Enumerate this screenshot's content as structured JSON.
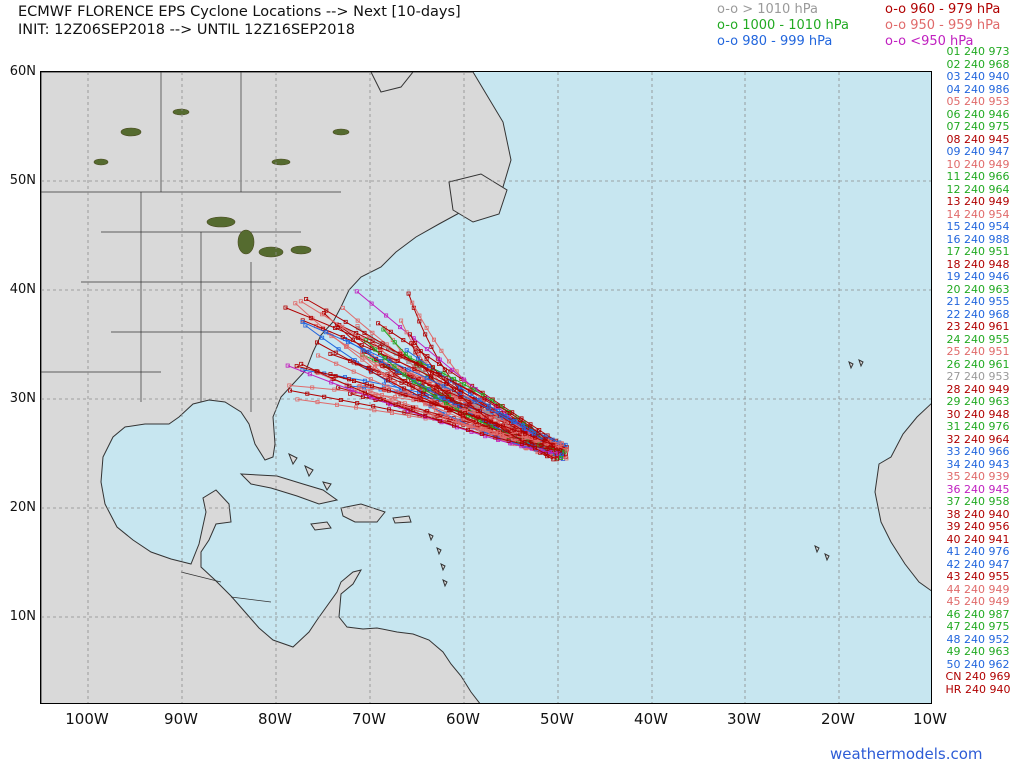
{
  "header": {
    "title_line1": "ECMWF FLORENCE EPS Cyclone Locations --> Next [10-days]",
    "title_line2": "INIT: 12Z06SEP2018 --> UNTIL 12Z16SEP2018"
  },
  "legend": [
    {
      "text": "o-o > 1010 hPa",
      "color": "#9a9a9a"
    },
    {
      "text": "o-o 960 - 979 hPa",
      "color": "#b00000"
    },
    {
      "text": "o-o 1000 - 1010 hPa",
      "color": "#22aa22"
    },
    {
      "text": "o-o 950 - 959 hPa",
      "color": "#e06a6a"
    },
    {
      "text": "o-o 980 - 999 hPa",
      "color": "#2266dd"
    },
    {
      "text": "o-o <950 hPa",
      "color": "#c020c0"
    }
  ],
  "axes": {
    "lat_labels": [
      "60N",
      "50N",
      "40N",
      "30N",
      "20N",
      "10N"
    ],
    "lon_labels": [
      "100W",
      "90W",
      "80W",
      "70W",
      "60W",
      "50W",
      "40W",
      "30W",
      "20W",
      "10W"
    ],
    "lat_range": [
      2,
      60
    ],
    "lon_range": [
      -105,
      -10
    ]
  },
  "members": [
    {
      "id": "01",
      "hours": "240",
      "pressure": "973",
      "color": "#22aa22"
    },
    {
      "id": "02",
      "hours": "240",
      "pressure": "968",
      "color": "#22aa22"
    },
    {
      "id": "03",
      "hours": "240",
      "pressure": "940",
      "color": "#2266dd"
    },
    {
      "id": "04",
      "hours": "240",
      "pressure": "986",
      "color": "#2266dd"
    },
    {
      "id": "05",
      "hours": "240",
      "pressure": "953",
      "color": "#e06a6a"
    },
    {
      "id": "06",
      "hours": "240",
      "pressure": "946",
      "color": "#22aa22"
    },
    {
      "id": "07",
      "hours": "240",
      "pressure": "975",
      "color": "#22aa22"
    },
    {
      "id": "08",
      "hours": "240",
      "pressure": "945",
      "color": "#b00000"
    },
    {
      "id": "09",
      "hours": "240",
      "pressure": "947",
      "color": "#2266dd"
    },
    {
      "id": "10",
      "hours": "240",
      "pressure": "949",
      "color": "#e06a6a"
    },
    {
      "id": "11",
      "hours": "240",
      "pressure": "966",
      "color": "#22aa22"
    },
    {
      "id": "12",
      "hours": "240",
      "pressure": "964",
      "color": "#22aa22"
    },
    {
      "id": "13",
      "hours": "240",
      "pressure": "949",
      "color": "#b00000"
    },
    {
      "id": "14",
      "hours": "240",
      "pressure": "954",
      "color": "#e06a6a"
    },
    {
      "id": "15",
      "hours": "240",
      "pressure": "954",
      "color": "#2266dd"
    },
    {
      "id": "16",
      "hours": "240",
      "pressure": "988",
      "color": "#2266dd"
    },
    {
      "id": "17",
      "hours": "240",
      "pressure": "951",
      "color": "#22aa22"
    },
    {
      "id": "18",
      "hours": "240",
      "pressure": "948",
      "color": "#b00000"
    },
    {
      "id": "19",
      "hours": "240",
      "pressure": "946",
      "color": "#2266dd"
    },
    {
      "id": "20",
      "hours": "240",
      "pressure": "963",
      "color": "#22aa22"
    },
    {
      "id": "21",
      "hours": "240",
      "pressure": "955",
      "color": "#2266dd"
    },
    {
      "id": "22",
      "hours": "240",
      "pressure": "968",
      "color": "#2266dd"
    },
    {
      "id": "23",
      "hours": "240",
      "pressure": "961",
      "color": "#b00000"
    },
    {
      "id": "24",
      "hours": "240",
      "pressure": "955",
      "color": "#22aa22"
    },
    {
      "id": "25",
      "hours": "240",
      "pressure": "951",
      "color": "#e06a6a"
    },
    {
      "id": "26",
      "hours": "240",
      "pressure": "961",
      "color": "#22aa22"
    },
    {
      "id": "27",
      "hours": "240",
      "pressure": "953",
      "color": "#9a9a9a"
    },
    {
      "id": "28",
      "hours": "240",
      "pressure": "949",
      "color": "#b00000"
    },
    {
      "id": "29",
      "hours": "240",
      "pressure": "963",
      "color": "#22aa22"
    },
    {
      "id": "30",
      "hours": "240",
      "pressure": "948",
      "color": "#b00000"
    },
    {
      "id": "31",
      "hours": "240",
      "pressure": "976",
      "color": "#22aa22"
    },
    {
      "id": "32",
      "hours": "240",
      "pressure": "964",
      "color": "#b00000"
    },
    {
      "id": "33",
      "hours": "240",
      "pressure": "966",
      "color": "#2266dd"
    },
    {
      "id": "34",
      "hours": "240",
      "pressure": "943",
      "color": "#2266dd"
    },
    {
      "id": "35",
      "hours": "240",
      "pressure": "939",
      "color": "#e06a6a"
    },
    {
      "id": "36",
      "hours": "240",
      "pressure": "945",
      "color": "#c020c0"
    },
    {
      "id": "37",
      "hours": "240",
      "pressure": "958",
      "color": "#22aa22"
    },
    {
      "id": "38",
      "hours": "240",
      "pressure": "940",
      "color": "#b00000"
    },
    {
      "id": "39",
      "hours": "240",
      "pressure": "956",
      "color": "#b00000"
    },
    {
      "id": "40",
      "hours": "240",
      "pressure": "941",
      "color": "#b00000"
    },
    {
      "id": "41",
      "hours": "240",
      "pressure": "976",
      "color": "#2266dd"
    },
    {
      "id": "42",
      "hours": "240",
      "pressure": "947",
      "color": "#2266dd"
    },
    {
      "id": "43",
      "hours": "240",
      "pressure": "955",
      "color": "#b00000"
    },
    {
      "id": "44",
      "hours": "240",
      "pressure": "949",
      "color": "#e06a6a"
    },
    {
      "id": "45",
      "hours": "240",
      "pressure": "949",
      "color": "#e06a6a"
    },
    {
      "id": "46",
      "hours": "240",
      "pressure": "987",
      "color": "#22aa22"
    },
    {
      "id": "47",
      "hours": "240",
      "pressure": "975",
      "color": "#22aa22"
    },
    {
      "id": "48",
      "hours": "240",
      "pressure": "952",
      "color": "#2266dd"
    },
    {
      "id": "49",
      "hours": "240",
      "pressure": "963",
      "color": "#22aa22"
    },
    {
      "id": "50",
      "hours": "240",
      "pressure": "962",
      "color": "#2266dd"
    },
    {
      "id": "CN",
      "hours": "240",
      "pressure": "969",
      "color": "#b00000"
    },
    {
      "id": "HR",
      "hours": "240",
      "pressure": "940",
      "color": "#b00000"
    }
  ],
  "credit": "weathermodels.com",
  "colors": {
    "ocean": "#c7e6f0",
    "land": "#d9d9d9",
    "border": "#333333",
    "grid": "#8a8a8a"
  }
}
